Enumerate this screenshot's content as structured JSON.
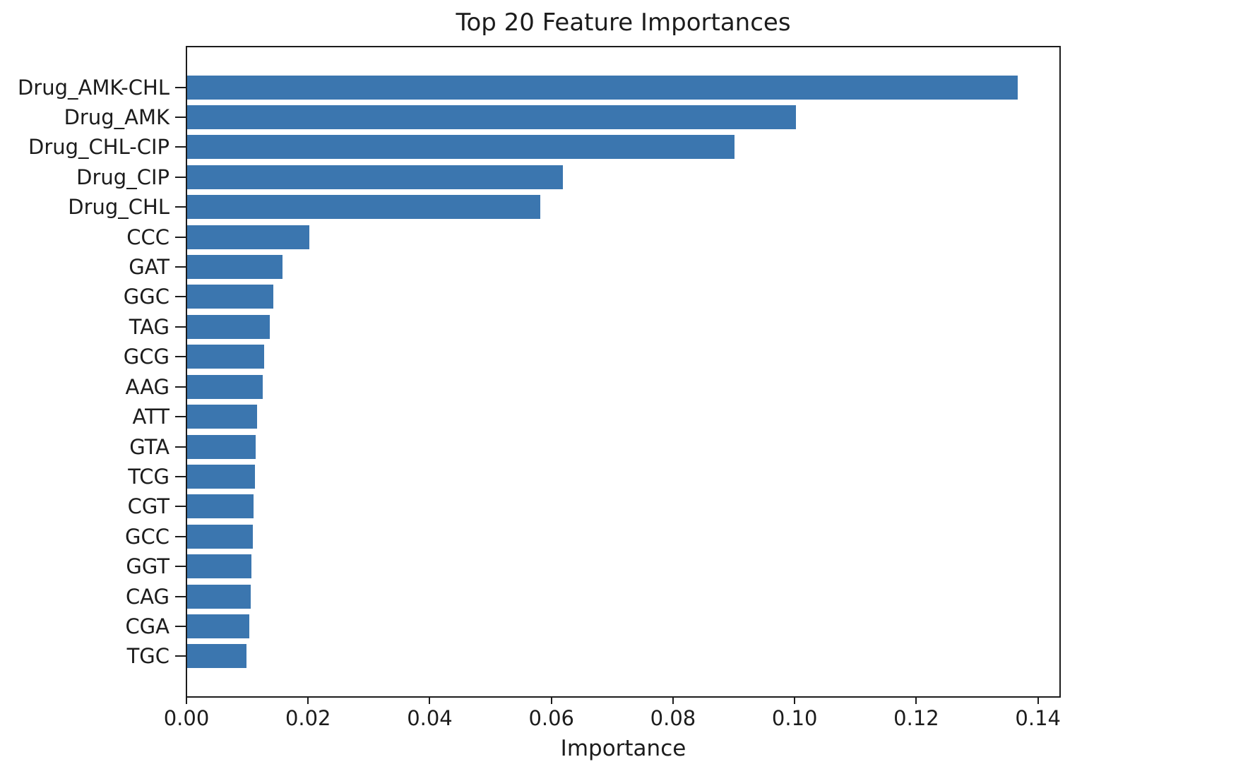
{
  "chart_data": {
    "type": "bar",
    "orientation": "horizontal",
    "title": "Top 20 Feature Importances",
    "xlabel": "Importance",
    "ylabel": "",
    "categories": [
      "Drug_AMK-CHL",
      "Drug_AMK",
      "Drug_CHL-CIP",
      "Drug_CIP",
      "Drug_CHL",
      "CCC",
      "GAT",
      "GGC",
      "TAG",
      "GCG",
      "AAG",
      "ATT",
      "GTA",
      "TCG",
      "CGT",
      "GCC",
      "GGT",
      "CAG",
      "CGA",
      "TGC"
    ],
    "values": [
      0.1365,
      0.1001,
      0.09,
      0.0618,
      0.058,
      0.0201,
      0.0157,
      0.0142,
      0.0136,
      0.0127,
      0.0124,
      0.0115,
      0.0113,
      0.0111,
      0.0109,
      0.0108,
      0.0106,
      0.0104,
      0.0102,
      0.0098
    ],
    "xlim": [
      0,
      0.1434
    ],
    "xtick_values": [
      0.0,
      0.02,
      0.04,
      0.06,
      0.08,
      0.1,
      0.12,
      0.14
    ],
    "xtick_labels": [
      "0.00",
      "0.02",
      "0.04",
      "0.06",
      "0.08",
      "0.10",
      "0.12",
      "0.14"
    ],
    "bar_color": "#3B76AF",
    "grid": false,
    "legend": null
  }
}
